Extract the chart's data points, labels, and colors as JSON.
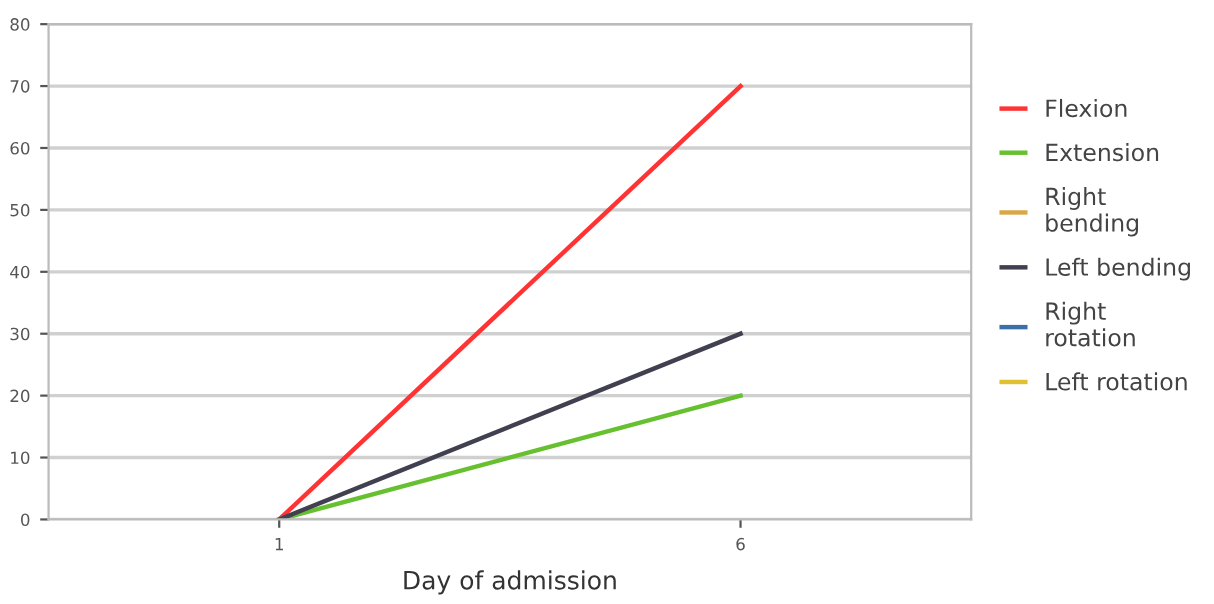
{
  "chart_data": {
    "type": "line",
    "xlabel": "Day of admission",
    "categories": [
      "1",
      "6"
    ],
    "series": [
      {
        "name": "Flexion",
        "color": "#ff3333",
        "values": [
          0,
          70
        ]
      },
      {
        "name": "Extension",
        "color": "#66c030",
        "values": [
          0,
          20
        ]
      },
      {
        "name": "Right\nbending",
        "color": "#d8a848",
        "values": [
          null,
          null
        ]
      },
      {
        "name": "Left bending",
        "color": "#404050",
        "values": [
          0,
          30
        ]
      },
      {
        "name": "Right\nrotation",
        "color": "#3a6fa8",
        "values": [
          null,
          null
        ]
      },
      {
        "name": "Left rotation",
        "color": "#e0c030",
        "values": [
          null,
          null
        ]
      }
    ],
    "ylim": [
      0,
      80
    ],
    "yticks": [
      0,
      10,
      20,
      30,
      40,
      50,
      60,
      70,
      80
    ],
    "grid": "y",
    "legend": "right",
    "marker": "none",
    "line_style": "solid"
  }
}
